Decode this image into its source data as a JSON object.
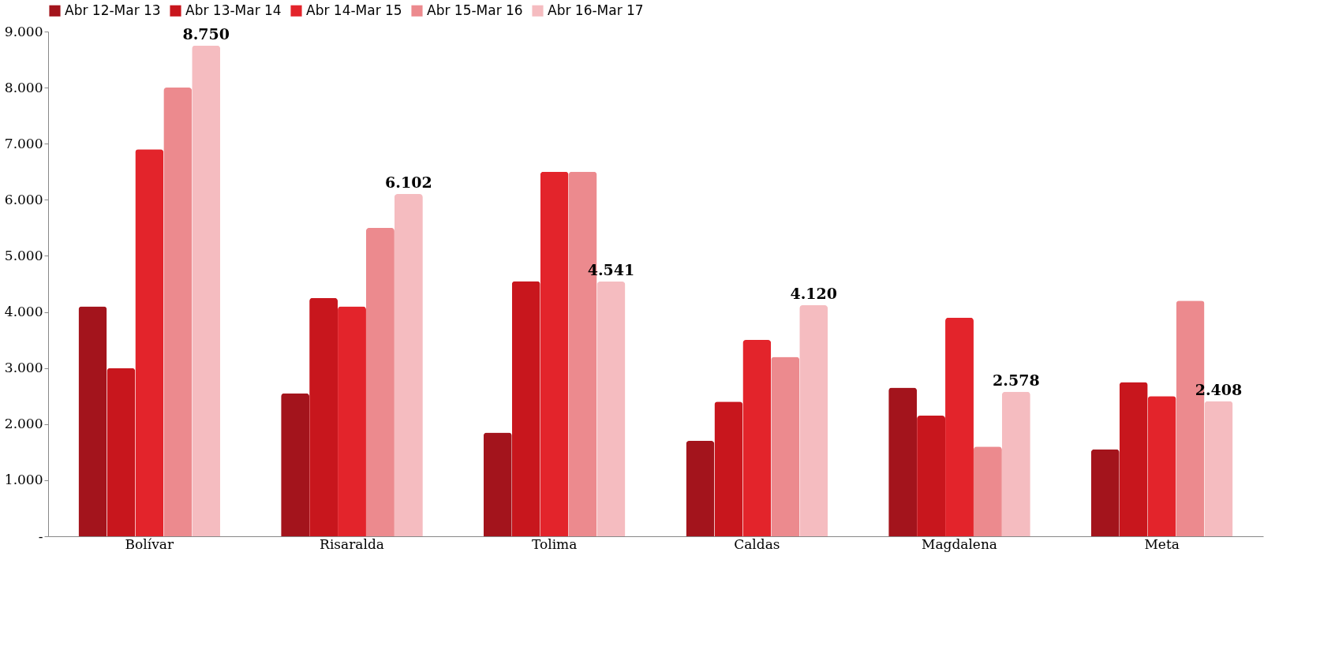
{
  "chart_data": {
    "type": "bar",
    "categories": [
      "Bolívar",
      "Risaralda",
      "Tolima",
      "Caldas",
      "Magdalena",
      "Meta"
    ],
    "series": [
      {
        "name": "Abr 12-Mar 13",
        "color": "#a3141c",
        "values": [
          4100,
          2550,
          1850,
          1700,
          2650,
          1550
        ]
      },
      {
        "name": "Abr 13-Mar 14",
        "color": "#c8161d",
        "values": [
          3000,
          4250,
          4550,
          2400,
          2150,
          2750
        ]
      },
      {
        "name": "Abr 14-Mar 15",
        "color": "#e3242b",
        "values": [
          6900,
          4100,
          6500,
          3500,
          3900,
          2500
        ]
      },
      {
        "name": "Abr 15-Mar 16",
        "color": "#ec8a8e",
        "values": [
          8000,
          5500,
          6500,
          3200,
          1600,
          4200
        ]
      },
      {
        "name": "Abr 16-Mar 17",
        "color": "#f5bcc0",
        "values": [
          8750,
          6102,
          4541,
          4120,
          2578,
          2408
        ],
        "value_labels": [
          "8.750",
          "6.102",
          "4.541",
          "4.120",
          "2.578",
          "2.408"
        ]
      }
    ],
    "ylim": [
      0,
      9000
    ],
    "yticks": [
      {
        "value": 0,
        "label": "-"
      },
      {
        "value": 1000,
        "label": "1.000"
      },
      {
        "value": 2000,
        "label": "2.000"
      },
      {
        "value": 3000,
        "label": "3.000"
      },
      {
        "value": 4000,
        "label": "4.000"
      },
      {
        "value": 5000,
        "label": "5.000"
      },
      {
        "value": 6000,
        "label": "6.000"
      },
      {
        "value": 7000,
        "label": "7.000"
      },
      {
        "value": 8000,
        "label": "8.000"
      },
      {
        "value": 9000,
        "label": "9.000"
      }
    ],
    "legend": "top",
    "grid": false
  }
}
